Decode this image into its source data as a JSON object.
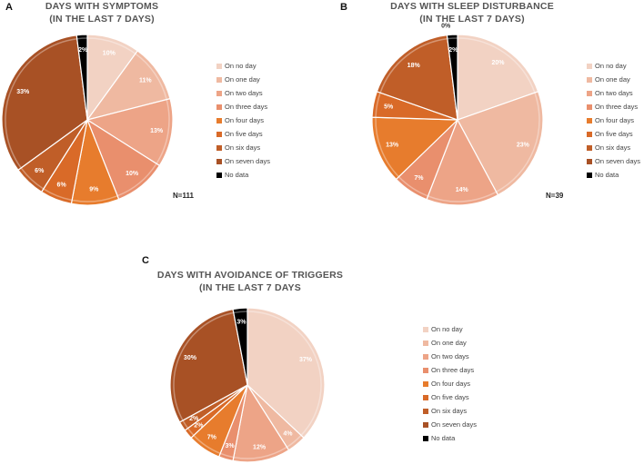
{
  "colors": {
    "On no day": "#f2d2c3",
    "On one day": "#efb9a1",
    "On two days": "#eda487",
    "On three days": "#e98f6d",
    "On four days": "#e77c2d",
    "On five days": "#d96a28",
    "On six days": "#c05e28",
    "On seven days": "#a85125",
    "No data": "#000000"
  },
  "chart_data": [
    {
      "panel": "A",
      "type": "pie",
      "title": [
        "DAYS WITH SYMPTOMS",
        "(IN THE LAST 7 DAYS)"
      ],
      "categories": [
        "On no day",
        "On one day",
        "On two days",
        "On three days",
        "On four days",
        "On five days",
        "On six days",
        "On seven days",
        "No data"
      ],
      "values": [
        10,
        11,
        13,
        10,
        9,
        6,
        6,
        33,
        2
      ],
      "labels": [
        "10%",
        "11%",
        "13%",
        "10%",
        "9%",
        "6%",
        "6%",
        "33%",
        "2%"
      ],
      "n": "N=111"
    },
    {
      "panel": "B",
      "type": "pie",
      "title": [
        "DAYS WITH SLEEP DISTURBANCE",
        "(IN THE LAST 7 DAYS)"
      ],
      "categories": [
        "On no day",
        "On one day",
        "On two days",
        "On three days",
        "On four days",
        "On five days",
        "On six days",
        "On seven days",
        "No data"
      ],
      "values": [
        20,
        23,
        14,
        7,
        13,
        5,
        18,
        0,
        2
      ],
      "labels": [
        "20%",
        "23%",
        "14%",
        "7%",
        "13%",
        "5%",
        "18%",
        "0%",
        "2%"
      ],
      "n": "N=39"
    },
    {
      "panel": "C",
      "type": "pie",
      "title": [
        "DAYS WITH AVOIDANCE OF TRIGGERS",
        "(IN THE LAST 7 DAYS"
      ],
      "categories": [
        "On no day",
        "On one day",
        "On two days",
        "On three days",
        "On four days",
        "On five days",
        "On six days",
        "On seven days",
        "No data"
      ],
      "values": [
        37,
        4,
        12,
        3,
        7,
        2,
        2,
        30,
        3
      ],
      "labels": [
        "37%",
        "4%",
        "12%",
        "3%",
        "7%",
        "2%",
        "2%",
        "30%",
        "3%"
      ],
      "n": ""
    }
  ],
  "legend": [
    "On no day",
    "On one day",
    "On two days",
    "On three days",
    "On four days",
    "On five days",
    "On six days",
    "On seven days",
    "No data"
  ]
}
